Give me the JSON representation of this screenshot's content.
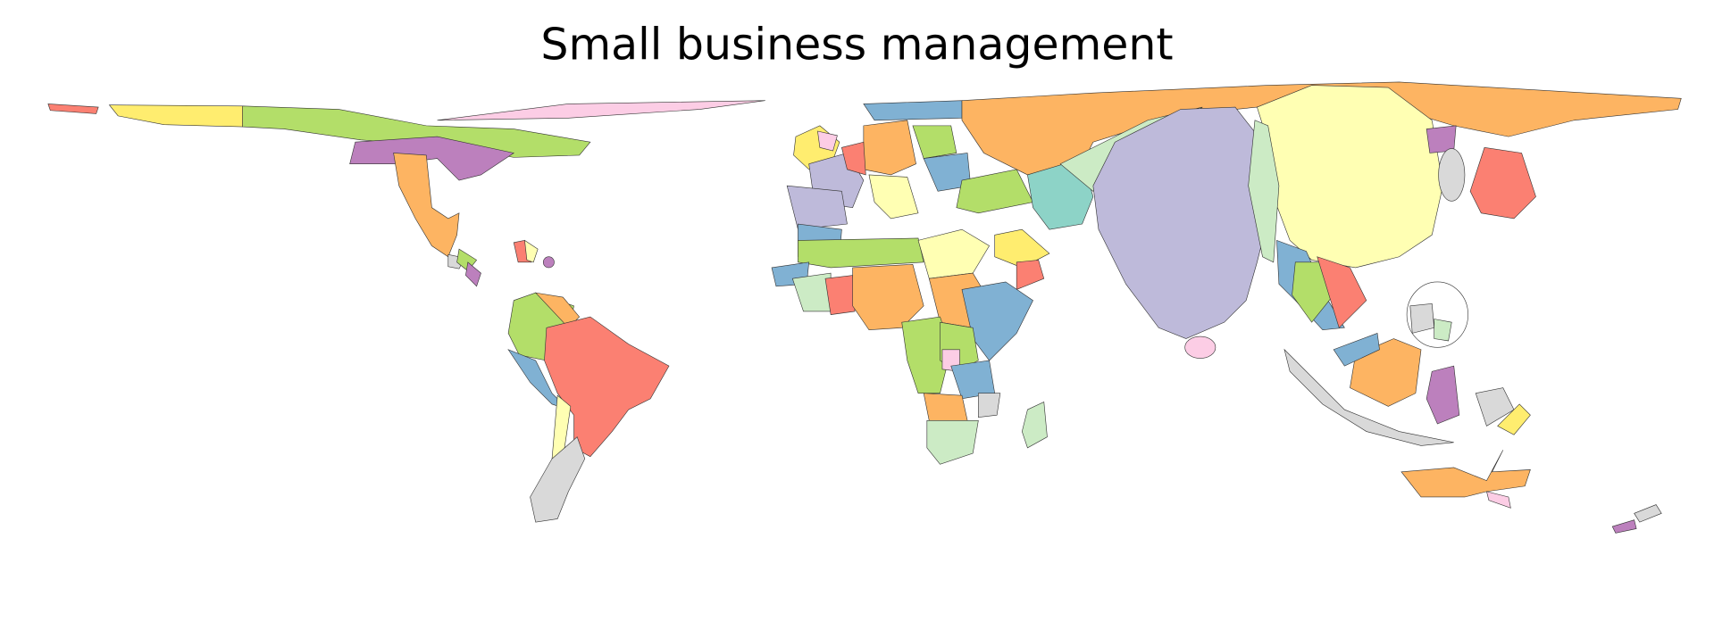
{
  "title": "Small business management"
}
